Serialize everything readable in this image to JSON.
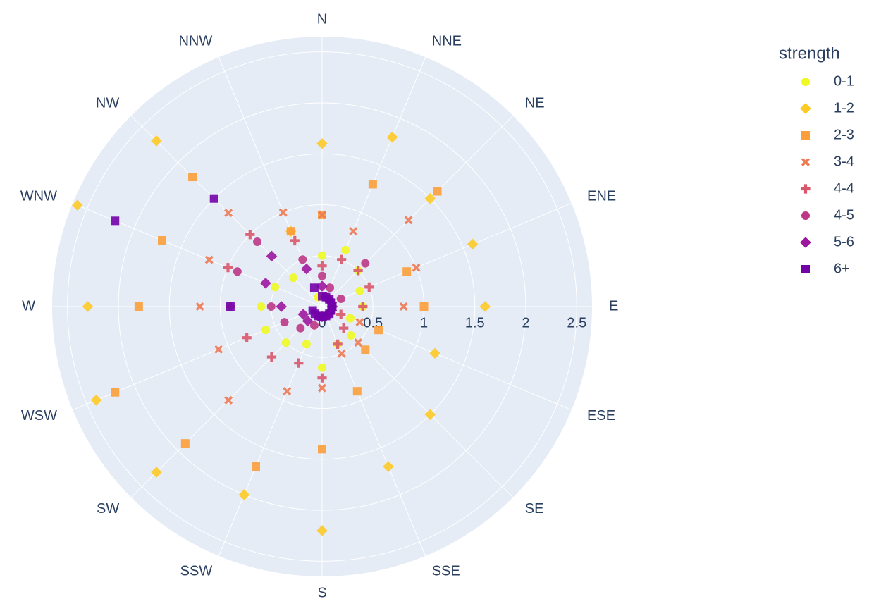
{
  "chart_data": {
    "type": "scatterpolar",
    "categories": [
      "N",
      "NNE",
      "NE",
      "ENE",
      "E",
      "ESE",
      "SE",
      "SSE",
      "S",
      "SSW",
      "SW",
      "WSW",
      "W",
      "WNW",
      "NW",
      "NNW"
    ],
    "rlim": [
      0,
      2.65
    ],
    "rticks": [
      0,
      0.5,
      1,
      1.5,
      2,
      2.5
    ],
    "legend_title": "strength",
    "series": [
      {
        "name": "0-1",
        "color": "#f0f921",
        "symbol": "circle",
        "values": [
          0.5,
          0.6,
          0.5,
          0.4,
          0.4,
          0.3,
          0.4,
          0.4,
          0.6,
          0.4,
          0.5,
          0.6,
          0.6,
          0.5,
          0.4,
          0.1
        ]
      },
      {
        "name": "1-2",
        "color": "#fdca26",
        "symbol": "diamond",
        "values": [
          1.6,
          1.8,
          1.5,
          1.6,
          1.6,
          1.2,
          1.5,
          1.7,
          2.2,
          2.0,
          2.3,
          2.4,
          2.3,
          2.6,
          2.3,
          0.8
        ]
      },
      {
        "name": "2-3",
        "color": "#fb9f3a",
        "symbol": "square",
        "values": [
          0.9,
          1.3,
          1.6,
          0.9,
          1.0,
          0.6,
          0.6,
          0.9,
          1.4,
          1.7,
          1.9,
          2.2,
          1.8,
          1.7,
          1.8,
          0.8
        ]
      },
      {
        "name": "3-4",
        "color": "#ed7953",
        "symbol": "x",
        "values": [
          0.9,
          0.8,
          1.2,
          1.0,
          0.8,
          0.4,
          0.5,
          0.5,
          0.8,
          0.9,
          1.3,
          1.1,
          1.2,
          1.2,
          1.3,
          1.0
        ]
      },
      {
        "name": "4-4",
        "color": "#d8576b",
        "symbol": "cross",
        "values": [
          0.4,
          0.5,
          0.5,
          0.5,
          0.4,
          0.2,
          0.3,
          0.4,
          0.7,
          0.6,
          0.7,
          0.8,
          0.9,
          1.0,
          1.0,
          0.7
        ]
      },
      {
        "name": "4-5",
        "color": "#bd3786",
        "symbol": "circle",
        "values": [
          0.3,
          0.2,
          0.6,
          0.2,
          0.1,
          0.1,
          0.1,
          0.1,
          0.1,
          0.2,
          0.3,
          0.4,
          0.5,
          0.9,
          0.9,
          0.5
        ]
      },
      {
        "name": "5-6",
        "color": "#9c179e",
        "symbol": "diamond",
        "values": [
          0.2,
          0.1,
          0.1,
          0.1,
          0.1,
          0.1,
          0.1,
          0.1,
          0.1,
          0.1,
          0.2,
          0.2,
          0.4,
          0.6,
          0.7,
          0.4
        ]
      },
      {
        "name": "6+",
        "color": "#7201a8",
        "symbol": "square",
        "values": [
          0.1,
          0.1,
          0.1,
          0.1,
          0.1,
          0.1,
          0.1,
          0.1,
          0.1,
          0.1,
          0.1,
          0.1,
          0.9,
          2.2,
          1.5,
          0.2
        ]
      }
    ]
  }
}
